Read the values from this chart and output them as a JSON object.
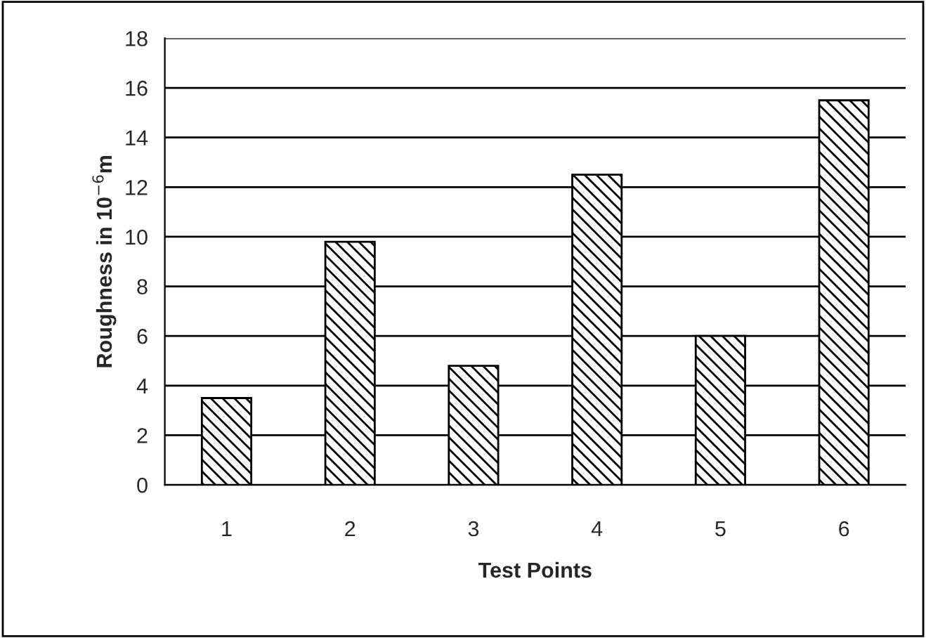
{
  "chart_data": {
    "type": "bar",
    "xlabel": "Test Points",
    "ylabel": "Roughness in 10$^{−6}$m",
    "categories": [
      "1",
      "2",
      "3",
      "4",
      "5",
      "6"
    ],
    "values": [
      3.5,
      9.8,
      4.8,
      12.5,
      6.0,
      15.5
    ],
    "color": "#000000",
    "ylim": [
      0,
      18
    ],
    "yticks": [
      0,
      2,
      4,
      6,
      8,
      10,
      12,
      14,
      16,
      18
    ],
    "grid": "y"
  }
}
